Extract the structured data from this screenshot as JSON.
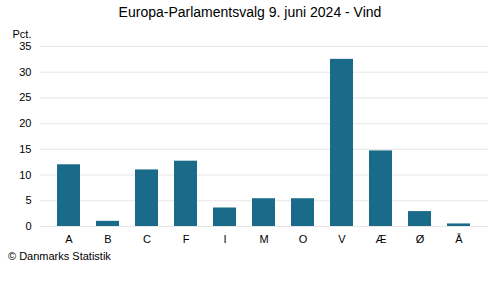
{
  "chart_data": {
    "type": "bar",
    "title": "Europa-Parlamentsvalg 9. juni 2024 - Vind",
    "categories": [
      "A",
      "B",
      "C",
      "F",
      "I",
      "M",
      "O",
      "V",
      "Æ",
      "Ø",
      "Å"
    ],
    "values": [
      12.0,
      1.0,
      11.0,
      12.7,
      3.6,
      5.4,
      5.4,
      32.5,
      14.7,
      2.9,
      0.5
    ],
    "color": "#1a6b8a",
    "ylabel": "Pct.",
    "ylim": [
      0,
      35
    ],
    "yticks": [
      0,
      5,
      10,
      15,
      20,
      25,
      30,
      35
    ],
    "grid": true,
    "caption": "© Danmarks Statistik"
  }
}
